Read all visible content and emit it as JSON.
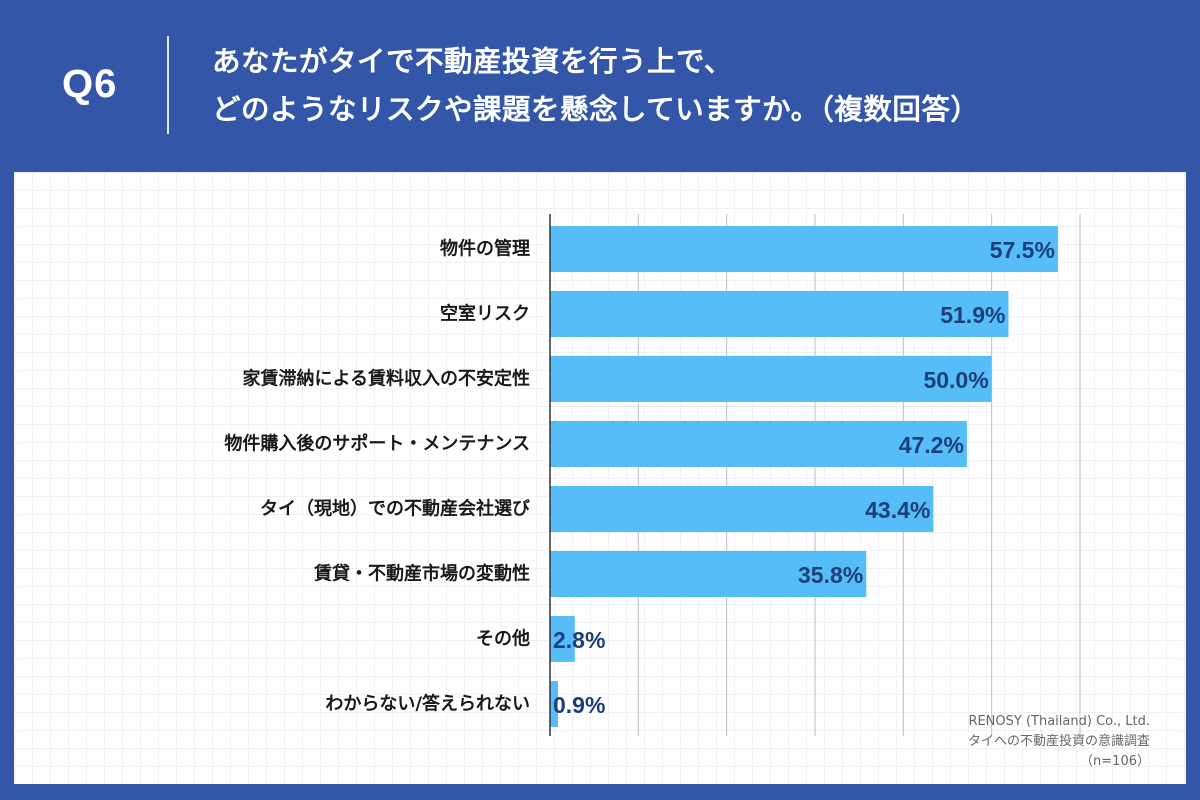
{
  "header": {
    "question_no": "Q6",
    "title_line1": "あなたがタイで不動産投資を行う上で、",
    "title_line2": "どのようなリスクや課題を懸念していますか。（複数回答）"
  },
  "credit": {
    "company": "RENOSY (Thailand) Co., Ltd.",
    "survey": "タイへの不動産投資の意識調査",
    "sample": "（n=106）"
  },
  "colors": {
    "header_bg": "#3356a8",
    "bar": "#56bdf9",
    "value_text": "#1b3f7a"
  },
  "chart_data": {
    "type": "bar",
    "orientation": "horizontal",
    "categories": [
      "物件の管理",
      "空室リスク",
      "家賃滞納による賃料収入の不安定性",
      "物件購入後のサポート・メンテナンス",
      "タイ（現地）での不動産会社選び",
      "賃貸・不動産市場の変動性",
      "その他",
      "わからない/答えられない"
    ],
    "values": [
      57.5,
      51.9,
      50.0,
      47.2,
      43.4,
      35.8,
      2.8,
      0.9
    ],
    "value_labels": [
      "57.5%",
      "51.9%",
      "50.0%",
      "47.2%",
      "43.4%",
      "35.8%",
      "2.8%",
      "0.9%"
    ],
    "xlim": [
      0,
      60
    ],
    "grid": true,
    "title": "",
    "xlabel": "",
    "ylabel": ""
  }
}
